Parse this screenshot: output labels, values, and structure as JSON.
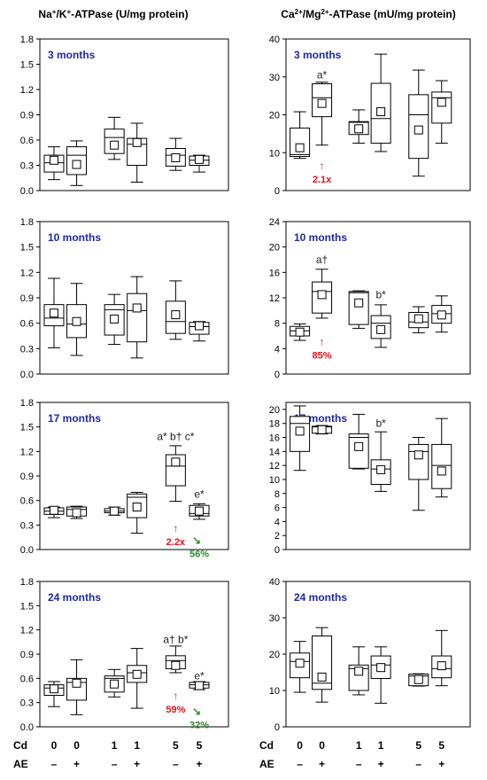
{
  "column_titles": {
    "left": {
      "pre": "Na",
      "sup1": "+",
      "mid": "/K",
      "sup2": "+",
      "post": "-ATPase (U/mg protein)"
    },
    "right": {
      "pre": "Ca",
      "sup1": "2+",
      "mid": "/Mg",
      "sup2": "2+",
      "post": "-ATPase (mU/mg protein)"
    }
  },
  "row_labels": {
    "cd": {
      "label": "Cd",
      "values": [
        "0",
        "0",
        "1",
        "1",
        "5",
        "5"
      ]
    },
    "ae": {
      "label": "AE",
      "values": [
        "–",
        "+",
        "–",
        "+",
        "–",
        "+"
      ]
    }
  },
  "colors": {
    "title": "#1f2a9e",
    "axis": "#000000",
    "red": "#e8141b",
    "green": "#2e8b2e"
  },
  "chart_data": [
    {
      "type": "box",
      "column": "left",
      "row": 0,
      "label": "3 months",
      "yticks": [
        "0.0",
        "0.3",
        "0.6",
        "0.9",
        "1.2",
        "1.5",
        "1.8"
      ],
      "ylim": [
        0,
        1.8
      ],
      "boxes": [
        {
          "group": 1,
          "whisker_low": 0.13,
          "q1": 0.22,
          "median": 0.33,
          "q3": 0.42,
          "whisker_high": 0.52,
          "mean": 0.36
        },
        {
          "group": 2,
          "whisker_low": 0.06,
          "q1": 0.19,
          "median": 0.42,
          "q3": 0.52,
          "whisker_high": 0.59,
          "mean": 0.31
        },
        {
          "group": 3,
          "whisker_low": 0.37,
          "q1": 0.44,
          "median": 0.63,
          "q3": 0.73,
          "whisker_high": 0.87,
          "mean": 0.54
        },
        {
          "group": 4,
          "whisker_low": 0.1,
          "q1": 0.3,
          "median": 0.55,
          "q3": 0.62,
          "whisker_high": 0.8,
          "mean": 0.57
        },
        {
          "group": 5,
          "whisker_low": 0.24,
          "q1": 0.29,
          "median": 0.42,
          "q3": 0.5,
          "whisker_high": 0.62,
          "mean": 0.39
        },
        {
          "group": 6,
          "whisker_low": 0.22,
          "q1": 0.3,
          "median": 0.36,
          "q3": 0.41,
          "whisker_high": 0.42,
          "mean": 0.37
        }
      ],
      "annotations": []
    },
    {
      "type": "box",
      "column": "right",
      "row": 0,
      "label": "3 months",
      "yticks": [
        "0",
        "10",
        "20",
        "30",
        "40"
      ],
      "ylim": [
        0,
        40
      ],
      "boxes": [
        {
          "group": 1,
          "whisker_low": 8.5,
          "q1": 9.0,
          "median": 9.5,
          "q3": 16.5,
          "whisker_high": 20.8,
          "mean": 11.3
        },
        {
          "group": 2,
          "whisker_low": 12.0,
          "q1": 19.5,
          "median": 24.5,
          "q3": 28.2,
          "whisker_high": 28.6,
          "mean": 23.0
        },
        {
          "group": 3,
          "whisker_low": 12.5,
          "q1": 14.8,
          "median": 18.0,
          "q3": 18.2,
          "whisker_high": 21.3,
          "mean": 16.3
        },
        {
          "group": 4,
          "whisker_low": 10.3,
          "q1": 12.5,
          "median": 19.0,
          "q3": 28.3,
          "whisker_high": 36.0,
          "mean": 20.8
        },
        {
          "group": 5,
          "whisker_low": 3.8,
          "q1": 8.5,
          "median": 20.0,
          "q3": 25.3,
          "whisker_high": 31.8,
          "mean": 16.0
        },
        {
          "group": 6,
          "whisker_low": 12.5,
          "q1": 17.8,
          "median": 24.5,
          "q3": 26.0,
          "whisker_high": 29.0,
          "mean": 23.3
        }
      ],
      "annotations": [
        {
          "group": 2,
          "text": "a*",
          "y": 30.5,
          "color": "dark"
        },
        {
          "group": 2,
          "text": "2.1x",
          "y": 3.0,
          "color": "red",
          "arrow": "up"
        }
      ]
    },
    {
      "type": "box",
      "column": "left",
      "row": 1,
      "label": "10 months",
      "yticks": [
        "0.0",
        "0.3",
        "0.6",
        "0.9",
        "1.2",
        "1.5",
        "1.8"
      ],
      "ylim": [
        0,
        1.8
      ],
      "boxes": [
        {
          "group": 1,
          "whisker_low": 0.31,
          "q1": 0.57,
          "median": 0.66,
          "q3": 0.82,
          "whisker_high": 1.13,
          "mean": 0.72
        },
        {
          "group": 2,
          "whisker_low": 0.22,
          "q1": 0.43,
          "median": 0.59,
          "q3": 0.82,
          "whisker_high": 1.07,
          "mean": 0.62
        },
        {
          "group": 3,
          "whisker_low": 0.35,
          "q1": 0.46,
          "median": 0.76,
          "q3": 0.82,
          "whisker_high": 0.94,
          "mean": 0.65
        },
        {
          "group": 4,
          "whisker_low": 0.19,
          "q1": 0.38,
          "median": 0.75,
          "q3": 0.95,
          "whisker_high": 1.15,
          "mean": 0.78
        },
        {
          "group": 5,
          "whisker_low": 0.41,
          "q1": 0.48,
          "median": 0.62,
          "q3": 0.86,
          "whisker_high": 1.1,
          "mean": 0.7
        },
        {
          "group": 6,
          "whisker_low": 0.39,
          "q1": 0.47,
          "median": 0.56,
          "q3": 0.61,
          "whisker_high": 0.62,
          "mean": 0.57
        }
      ],
      "annotations": []
    },
    {
      "type": "box",
      "column": "right",
      "row": 1,
      "label": "10 months",
      "yticks": [
        "0",
        "4",
        "8",
        "12",
        "16",
        "20",
        "24"
      ],
      "ylim": [
        0,
        24
      ],
      "boxes": [
        {
          "group": 1,
          "whisker_low": 5.3,
          "q1": 6.0,
          "median": 6.8,
          "q3": 7.5,
          "whisker_high": 7.9,
          "mean": 6.6
        },
        {
          "group": 2,
          "whisker_low": 8.8,
          "q1": 9.6,
          "median": 13.0,
          "q3": 14.5,
          "whisker_high": 16.5,
          "mean": 12.5
        },
        {
          "group": 3,
          "whisker_low": 7.2,
          "q1": 7.8,
          "median": 12.8,
          "q3": 13.0,
          "whisker_high": 13.1,
          "mean": 11.2
        },
        {
          "group": 4,
          "whisker_low": 4.2,
          "q1": 5.6,
          "median": 8.0,
          "q3": 9.2,
          "whisker_high": 10.9,
          "mean": 7.0
        },
        {
          "group": 5,
          "whisker_low": 6.5,
          "q1": 7.3,
          "median": 8.2,
          "q3": 9.7,
          "whisker_high": 10.6,
          "mean": 8.7
        },
        {
          "group": 6,
          "whisker_low": 6.6,
          "q1": 8.0,
          "median": 9.5,
          "q3": 10.8,
          "whisker_high": 12.3,
          "mean": 9.3
        }
      ],
      "annotations": [
        {
          "group": 2,
          "text": "a†",
          "y": 18.0,
          "color": "dark"
        },
        {
          "group": 4,
          "text": "b*",
          "y": 12.5,
          "color": "dark"
        },
        {
          "group": 2,
          "text": "85%",
          "y": 3.0,
          "color": "red",
          "arrow": "up"
        }
      ]
    },
    {
      "type": "box",
      "column": "left",
      "row": 2,
      "label": "17 months",
      "yticks": [
        "0.0",
        "0.3",
        "0.6",
        "0.9",
        "1.2",
        "1.5",
        "1.8"
      ],
      "ylim": [
        0,
        1.8
      ],
      "boxes": [
        {
          "group": 1,
          "whisker_low": 0.39,
          "q1": 0.43,
          "median": 0.47,
          "q3": 0.51,
          "whisker_high": 0.52,
          "mean": 0.48
        },
        {
          "group": 2,
          "whisker_low": 0.38,
          "q1": 0.41,
          "median": 0.49,
          "q3": 0.52,
          "whisker_high": 0.53,
          "mean": 0.45
        },
        {
          "group": 3,
          "whisker_low": 0.42,
          "q1": 0.45,
          "median": 0.47,
          "q3": 0.5,
          "whisker_high": 0.52,
          "mean": 0.47
        },
        {
          "group": 4,
          "whisker_low": 0.2,
          "q1": 0.39,
          "median": 0.64,
          "q3": 0.68,
          "whisker_high": 0.7,
          "mean": 0.52
        },
        {
          "group": 5,
          "whisker_low": 0.59,
          "q1": 0.78,
          "median": 1.02,
          "q3": 1.16,
          "whisker_high": 1.27,
          "mean": 1.07
        },
        {
          "group": 6,
          "whisker_low": 0.37,
          "q1": 0.41,
          "median": 0.44,
          "q3": 0.54,
          "whisker_high": 0.56,
          "mean": 0.47
        }
      ],
      "annotations": [
        {
          "group": 5,
          "text": "a* b† c*",
          "y": 1.38,
          "color": "dark"
        },
        {
          "group": 6,
          "text": "e*",
          "y": 0.68,
          "color": "dark"
        },
        {
          "group": 5,
          "text": "2.2x",
          "y": 0.1,
          "color": "red",
          "arrow": "up"
        },
        {
          "group": 6,
          "text": "56%",
          "y": -0.05,
          "color": "green",
          "arrow": "downright"
        }
      ]
    },
    {
      "type": "box",
      "column": "right",
      "row": 2,
      "label": "17 months",
      "yticks": [
        "0",
        "2",
        "4",
        "6",
        "8",
        "10",
        "12",
        "14",
        "16",
        "18",
        "20"
      ],
      "ylim": [
        0,
        21
      ],
      "boxes": [
        {
          "group": 1,
          "whisker_low": 11.3,
          "q1": 14.0,
          "median": 18.0,
          "q3": 19.0,
          "whisker_high": 20.5,
          "mean": 16.9
        },
        {
          "group": 2,
          "whisker_low": 16.5,
          "q1": 16.6,
          "median": 17.5,
          "q3": 17.6,
          "whisker_high": 17.7,
          "mean": 17.1
        },
        {
          "group": 3,
          "whisker_low": 11.5,
          "q1": 11.6,
          "median": 16.0,
          "q3": 16.5,
          "whisker_high": 19.3,
          "mean": 14.7
        },
        {
          "group": 4,
          "whisker_low": 8.3,
          "q1": 9.3,
          "median": 11.5,
          "q3": 12.8,
          "whisker_high": 16.8,
          "mean": 11.4
        },
        {
          "group": 5,
          "whisker_low": 5.6,
          "q1": 10.0,
          "median": 14.0,
          "q3": 15.0,
          "whisker_high": 16.0,
          "mean": 13.5
        },
        {
          "group": 6,
          "whisker_low": 7.5,
          "q1": 8.7,
          "median": 12.0,
          "q3": 15.0,
          "whisker_high": 18.7,
          "mean": 11.2
        }
      ],
      "annotations": [
        {
          "group": 4,
          "text": "b*",
          "y": 18.0,
          "color": "dark"
        }
      ]
    },
    {
      "type": "box",
      "column": "left",
      "row": 3,
      "label": "24 months",
      "yticks": [
        "0.0",
        "0.3",
        "0.6",
        "0.9",
        "1.2",
        "1.5",
        "1.8"
      ],
      "ylim": [
        0,
        1.8
      ],
      "boxes": [
        {
          "group": 1,
          "whisker_low": 0.25,
          "q1": 0.39,
          "median": 0.48,
          "q3": 0.52,
          "whisker_high": 0.56,
          "mean": 0.47
        },
        {
          "group": 2,
          "whisker_low": 0.15,
          "q1": 0.33,
          "median": 0.55,
          "q3": 0.6,
          "whisker_high": 0.83,
          "mean": 0.54
        },
        {
          "group": 3,
          "whisker_low": 0.37,
          "q1": 0.43,
          "median": 0.6,
          "q3": 0.63,
          "whisker_high": 0.71,
          "mean": 0.53
        },
        {
          "group": 4,
          "whisker_low": 0.23,
          "q1": 0.55,
          "median": 0.67,
          "q3": 0.76,
          "whisker_high": 0.97,
          "mean": 0.65
        },
        {
          "group": 5,
          "whisker_low": 0.67,
          "q1": 0.72,
          "median": 0.82,
          "q3": 0.88,
          "whisker_high": 1.0,
          "mean": 0.76
        },
        {
          "group": 6,
          "whisker_low": 0.46,
          "q1": 0.48,
          "median": 0.52,
          "q3": 0.55,
          "whisker_high": 0.56,
          "mean": 0.51
        }
      ],
      "annotations": [
        {
          "group": 5,
          "text": "a† b*",
          "y": 1.08,
          "color": "dark"
        },
        {
          "group": 6,
          "text": "e*",
          "y": 0.63,
          "color": "dark"
        },
        {
          "group": 5,
          "text": "59%",
          "y": 0.22,
          "color": "red",
          "arrow": "up"
        },
        {
          "group": 6,
          "text": "32%",
          "y": 0.03,
          "color": "green",
          "arrow": "downright"
        }
      ]
    },
    {
      "type": "box",
      "column": "right",
      "row": 3,
      "label": "24 months",
      "yticks": [
        "0",
        "10",
        "20",
        "30",
        "40"
      ],
      "ylim": [
        0,
        40
      ],
      "boxes": [
        {
          "group": 1,
          "whisker_low": 9.5,
          "q1": 13.5,
          "median": 18.0,
          "q3": 20.3,
          "whisker_high": 23.5,
          "mean": 17.5
        },
        {
          "group": 2,
          "whisker_low": 6.8,
          "q1": 10.3,
          "median": 12.0,
          "q3": 25.0,
          "whisker_high": 27.3,
          "mean": 13.7
        },
        {
          "group": 3,
          "whisker_low": 8.8,
          "q1": 10.0,
          "median": 16.0,
          "q3": 17.0,
          "whisker_high": 22.0,
          "mean": 15.3
        },
        {
          "group": 4,
          "whisker_low": 6.5,
          "q1": 13.3,
          "median": 17.0,
          "q3": 19.5,
          "whisker_high": 22.0,
          "mean": 16.3
        },
        {
          "group": 5,
          "whisker_low": 11.2,
          "q1": 11.3,
          "median": 14.0,
          "q3": 14.5,
          "whisker_high": 14.6,
          "mean": 13.0
        },
        {
          "group": 6,
          "whisker_low": 11.3,
          "q1": 13.5,
          "median": 16.0,
          "q3": 19.5,
          "whisker_high": 26.5,
          "mean": 16.8
        }
      ],
      "annotations": []
    }
  ]
}
